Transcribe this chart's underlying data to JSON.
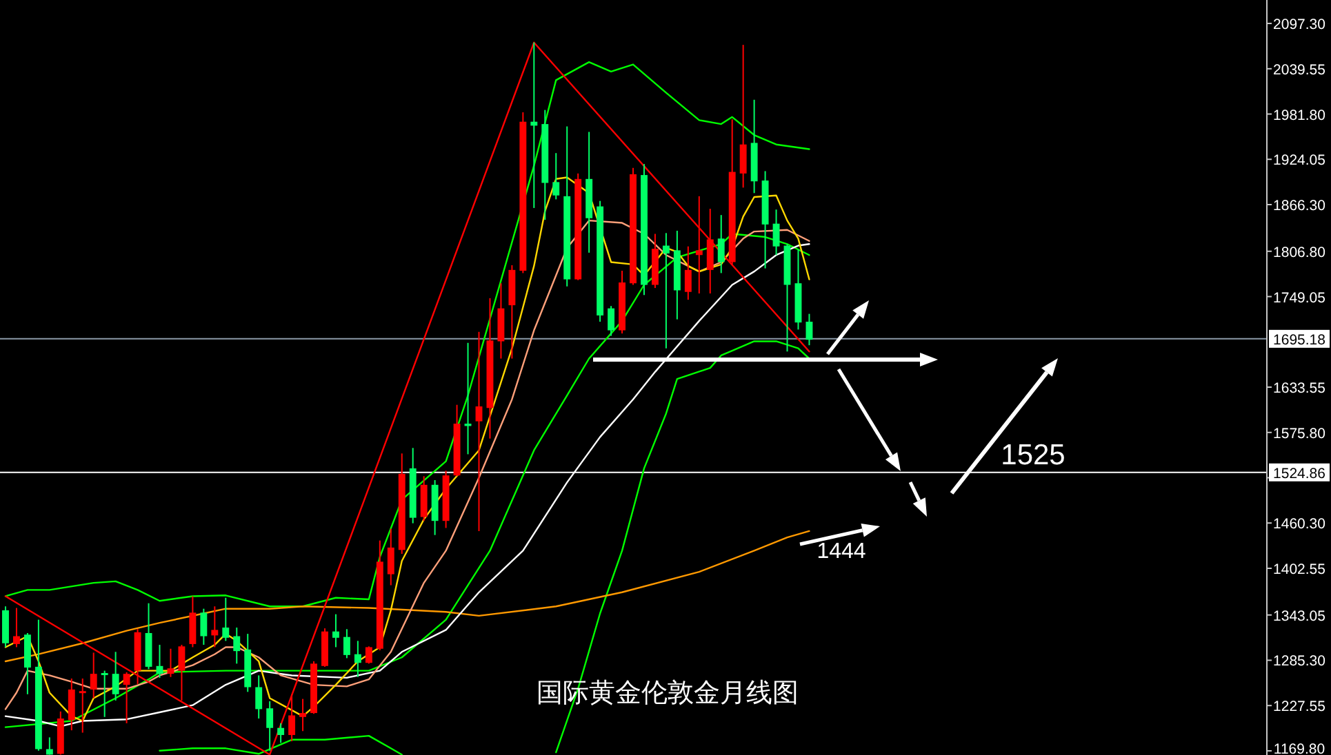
{
  "chart_data": {
    "type": "candlestick",
    "title": "国际黄金伦敦金月线图",
    "categories": [
      null,
      null,
      null,
      null,
      null,
      null,
      null,
      null,
      null,
      null,
      null,
      null,
      null,
      null,
      null,
      null,
      null,
      null,
      null,
      null,
      null,
      null,
      null,
      null,
      null,
      null,
      null,
      null,
      null,
      null,
      null,
      null,
      null,
      null,
      null,
      null,
      null,
      null,
      null,
      null,
      null,
      null,
      null,
      null,
      null,
      null,
      null,
      null,
      null,
      null,
      null,
      null,
      null,
      null,
      null,
      null,
      null,
      null,
      null,
      null,
      null,
      null,
      null,
      null,
      null,
      null,
      null,
      null,
      null,
      null,
      null,
      null,
      null,
      null,
      null,
      null,
      null,
      null,
      null,
      null,
      null,
      null,
      null,
      null,
      null,
      null,
      null,
      null,
      null,
      null,
      null,
      null,
      null,
      null,
      null,
      null,
      null,
      null,
      null,
      null,
      null,
      null,
      null,
      null,
      null,
      null,
      null,
      null,
      null,
      null,
      null,
      null,
      null,
      null,
      null
    ],
    "ohlc": [
      [
        1349,
        1354,
        1302,
        1307
      ],
      [
        1306,
        1352,
        1302,
        1316
      ],
      [
        1318,
        1320,
        1242,
        1276
      ],
      [
        1277,
        1337,
        1170,
        1172
      ],
      [
        1172,
        1187,
        1165,
        1165
      ],
      [
        1166,
        1220,
        1165,
        1211
      ],
      [
        1209,
        1262,
        1196,
        1248
      ],
      [
        1245,
        1262,
        1193,
        1246
      ],
      [
        1248,
        1295,
        1237,
        1268
      ],
      [
        1269,
        1272,
        1213,
        1267
      ],
      [
        1268,
        1296,
        1234,
        1242
      ],
      [
        1254,
        1270,
        1205,
        1268
      ],
      [
        1272,
        1325,
        1255,
        1321
      ],
      [
        1320,
        1358,
        1274,
        1277
      ],
      [
        1278,
        1305,
        1263,
        1268
      ],
      [
        1268,
        1300,
        1264,
        1275
      ],
      [
        1272,
        1305,
        1234,
        1303
      ],
      [
        1306,
        1367,
        1302,
        1346
      ],
      [
        1346,
        1351,
        1305,
        1316
      ],
      [
        1317,
        1354,
        1302,
        1324
      ],
      [
        1327,
        1365,
        1310,
        1314
      ],
      [
        1316,
        1327,
        1281,
        1297
      ],
      [
        1299,
        1319,
        1245,
        1251
      ],
      [
        1251,
        1266,
        1211,
        1223
      ],
      [
        1224,
        1233,
        1170,
        1199
      ],
      [
        1199,
        1205,
        1180,
        1190
      ],
      [
        1190,
        1242,
        1182,
        1215
      ],
      [
        1213,
        1236,
        1195,
        1218
      ],
      [
        1218,
        1284,
        1217,
        1281
      ],
      [
        1278,
        1326,
        1277,
        1322
      ],
      [
        1322,
        1344,
        1302,
        1314
      ],
      [
        1315,
        1325,
        1288,
        1292
      ],
      [
        1293,
        1310,
        1264,
        1282
      ],
      [
        1282,
        1303,
        1281,
        1302
      ],
      [
        1300,
        1438,
        1298,
        1411
      ],
      [
        1395,
        1453,
        1381,
        1429
      ],
      [
        1426,
        1549,
        1421,
        1523
      ],
      [
        1530,
        1556,
        1460,
        1467
      ],
      [
        1468,
        1520,
        1463,
        1509
      ],
      [
        1509,
        1515,
        1445,
        1463
      ],
      [
        1463,
        1527,
        1454,
        1521
      ],
      [
        1521,
        1611,
        1520,
        1587
      ],
      [
        1587,
        1690,
        1548,
        1584
      ],
      [
        1590,
        1704,
        1450,
        1609
      ],
      [
        1607,
        1747,
        1568,
        1693
      ],
      [
        1692,
        1766,
        1670,
        1734
      ],
      [
        1738,
        1789,
        1670,
        1783
      ],
      [
        1782,
        1984,
        1779,
        1972
      ],
      [
        1972,
        2073,
        1862,
        1967
      ],
      [
        1969,
        1987,
        1847,
        1894
      ],
      [
        1895,
        1932,
        1873,
        1878
      ],
      [
        1877,
        1966,
        1762,
        1771
      ],
      [
        1771,
        1906,
        1770,
        1899
      ],
      [
        1899,
        1959,
        1805,
        1849
      ],
      [
        1864,
        1871,
        1717,
        1725
      ],
      [
        1734,
        1737,
        1699,
        1706
      ],
      [
        1706,
        1782,
        1702,
        1767
      ],
      [
        1766,
        1913,
        1764,
        1905
      ],
      [
        1904,
        1918,
        1751,
        1764
      ],
      [
        1764,
        1829,
        1760,
        1810
      ],
      [
        1814,
        1830,
        1683,
        1804
      ],
      [
        1808,
        1833,
        1720,
        1757
      ],
      [
        1755,
        1813,
        1745,
        1783
      ],
      [
        1802,
        1877,
        1753,
        1808
      ],
      [
        1783,
        1861,
        1753,
        1822
      ],
      [
        1823,
        1853,
        1779,
        1793
      ],
      [
        1793,
        1975,
        1790,
        1908
      ],
      [
        1906,
        2070,
        1888,
        1943
      ],
      [
        1945,
        2000,
        1881,
        1896
      ],
      [
        1897,
        1909,
        1785,
        1841
      ],
      [
        1842,
        1860,
        1802,
        1813
      ],
      [
        1814,
        1816,
        1679,
        1764
      ],
      [
        1766,
        1809,
        1707,
        1716
      ],
      [
        1717,
        1727,
        1687,
        1694
      ],
      null,
      null,
      null,
      null,
      null,
      null,
      null,
      null,
      null,
      null,
      null,
      null,
      null,
      null,
      null,
      null,
      null,
      null,
      null,
      null,
      null,
      null,
      null,
      null,
      null,
      null,
      null,
      null,
      null,
      null,
      null,
      null,
      null,
      null,
      null,
      null,
      null,
      null,
      null,
      null,
      null
    ],
    "colors": [
      "#00ff66",
      "#ff0000",
      "#00ff66",
      "#00ff66",
      "#00ff66",
      "#ff0000",
      "#ff0000",
      "#ff0000",
      "#ff0000",
      "#00ff66",
      "#00ff66",
      "#ff0000",
      "#ff0000",
      "#00ff66",
      "#00ff66",
      "#ff0000",
      "#ff0000",
      "#ff0000",
      "#00ff66",
      "#ff0000",
      "#00ff66",
      "#00ff66",
      "#00ff66",
      "#00ff66",
      "#00ff66",
      "#00ff66",
      "#ff0000",
      "#ff0000",
      "#ff0000",
      "#ff0000",
      "#00ff66",
      "#00ff66",
      "#00ff66",
      "#ff0000",
      "#ff0000",
      "#ff0000",
      "#ff0000",
      "#00ff66",
      "#ff0000",
      "#00ff66",
      "#ff0000",
      "#ff0000",
      "#00ff66",
      "#ff0000",
      "#ff0000",
      "#ff0000",
      "#ff0000",
      "#ff0000",
      "#00ff66",
      "#00ff66",
      "#00ff66",
      "#00ff66",
      "#ff0000",
      "#00ff66",
      "#00ff66",
      "#00ff66",
      "#ff0000",
      "#ff0000",
      "#00ff66",
      "#ff0000",
      "#00ff66",
      "#00ff66",
      "#ff0000",
      "#ff0000",
      "#ff0000",
      "#00ff66",
      "#ff0000",
      "#ff0000",
      "#00ff66",
      "#00ff66",
      "#00ff66",
      "#00ff66",
      "#00ff66",
      "#00ff66",
      null,
      null,
      null,
      null,
      null,
      null,
      null,
      null,
      null,
      null,
      null,
      null,
      null,
      null,
      null,
      null,
      null,
      null,
      null,
      null,
      null,
      null,
      null,
      null,
      null,
      null,
      null,
      null,
      null,
      null,
      null,
      null,
      null,
      null,
      null,
      null,
      null,
      null,
      null,
      null,
      null
    ],
    "series": [
      {
        "type": "line",
        "color": "#00ff00",
        "values": [
          1367,
          null,
          1375,
          null,
          1375,
          null,
          null,
          null,
          1384,
          null,
          1386,
          null,
          1375,
          null,
          1361,
          null,
          null,
          1367,
          null,
          null,
          1368,
          null,
          null,
          null,
          1354,
          null,
          null,
          1354,
          null,
          null,
          1365,
          null,
          null,
          1363,
          1417,
          null,
          1490,
          null,
          null,
          null,
          1539,
          null,
          1623,
          null,
          null,
          null,
          null,
          null,
          1916,
          null,
          2025,
          null,
          null,
          2048,
          null,
          2036,
          null,
          2045,
          null,
          null,
          2009,
          null,
          null,
          1974,
          null,
          1969,
          1978,
          null,
          1955,
          null,
          1943,
          null,
          null,
          1937,
          null,
          null,
          null,
          null,
          null,
          null,
          null,
          null,
          null,
          null,
          null,
          null,
          null,
          null,
          null,
          null,
          null,
          null,
          null,
          null,
          null,
          null,
          null,
          null,
          null,
          null,
          null,
          null,
          null,
          null,
          null,
          null,
          null,
          null,
          null,
          null,
          null,
          null,
          null,
          null,
          null
        ]
      },
      {
        "type": "line",
        "color": "#00ff00",
        "values": [
          null,
          null,
          null,
          null,
          null,
          null,
          null,
          null,
          null,
          null,
          null,
          null,
          null,
          null,
          1170,
          null,
          null,
          1173,
          null,
          null,
          1173,
          null,
          null,
          1166,
          null,
          null,
          1184,
          null,
          null,
          1184,
          null,
          null,
          null,
          1189,
          null,
          1173,
          1165,
          null,
          null,
          null,
          null,
          null,
          null,
          null,
          null,
          null,
          null,
          null,
          null,
          null,
          null,
          null,
          null,
          null,
          null,
          null,
          null,
          null,
          null,
          null,
          null,
          null,
          null,
          null,
          null,
          null,
          null,
          null,
          null,
          null,
          null,
          null,
          null,
          null,
          null,
          null,
          null,
          null,
          null,
          null,
          null,
          null,
          null,
          null,
          null,
          null,
          null,
          null,
          null,
          null,
          null,
          null,
          null,
          null,
          null,
          null,
          null,
          null,
          null,
          null,
          null,
          null,
          null,
          null,
          null,
          null,
          null,
          null,
          null,
          null,
          null,
          null,
          null,
          null,
          null
        ]
      },
      {
        "type": "line",
        "color": "#00ff00",
        "values": [
          null,
          null,
          null,
          null,
          null,
          null,
          null,
          null,
          null,
          null,
          null,
          null,
          null,
          null,
          null,
          null,
          null,
          null,
          null,
          null,
          null,
          null,
          null,
          null,
          null,
          null,
          null,
          null,
          null,
          null,
          null,
          null,
          null,
          null,
          null,
          null,
          null,
          null,
          null,
          null,
          null,
          null,
          null,
          null,
          null,
          null,
          null,
          null,
          null,
          null,
          1168,
          null,
          1249,
          null,
          1345,
          null,
          1425,
          null,
          1530,
          null,
          1600,
          1644,
          null,
          null,
          1658,
          1674,
          null,
          null,
          1692,
          null,
          1692,
          null,
          1683,
          1670,
          null,
          null,
          null,
          null,
          null,
          null,
          null,
          null,
          null,
          null,
          null,
          null,
          null,
          null,
          null,
          null,
          null,
          null,
          null,
          null,
          null,
          null,
          null,
          null,
          null,
          null,
          null,
          null,
          null,
          null,
          null,
          null,
          null,
          null,
          null,
          null,
          null,
          null,
          null,
          null,
          null
        ]
      },
      {
        "type": "line",
        "color": "#00ff00",
        "values": [
          1200,
          null,
          null,
          null,
          null,
          null,
          1208,
          null,
          null,
          null,
          1237,
          null,
          null,
          1261,
          1270,
          null,
          null,
          null,
          null,
          null,
          1272,
          null,
          null,
          null,
          null,
          null,
          null,
          null,
          null,
          null,
          null,
          null,
          null,
          1272,
          null,
          null,
          1289,
          null,
          null,
          null,
          1337,
          null,
          null,
          null,
          1425,
          null,
          null,
          null,
          1553,
          null,
          null,
          1623,
          null,
          1670,
          null,
          null,
          1718,
          null,
          1764,
          null,
          null,
          1799,
          null,
          null,
          null,
          1816,
          1829,
          null,
          null,
          1825,
          null,
          1816,
          null,
          1802,
          null,
          null,
          null,
          null,
          null,
          null,
          null,
          null,
          null,
          null,
          null,
          null,
          null,
          null,
          null,
          null,
          null,
          null,
          null,
          null,
          null,
          null,
          null,
          null,
          null,
          null,
          null,
          null,
          null,
          null,
          null,
          null,
          null,
          null,
          null,
          null,
          null,
          null,
          null,
          null,
          null
        ]
      },
      {
        "type": "line",
        "color": "#ff9900",
        "values": [
          1284,
          null,
          null,
          1293,
          null,
          null,
          null,
          1307,
          null,
          null,
          null,
          1323,
          null,
          null,
          1333,
          null,
          null,
          null,
          1345,
          null,
          1351,
          null,
          null,
          null,
          1351,
          null,
          null,
          1354,
          null,
          null,
          null,
          null,
          null,
          1352,
          null,
          null,
          null,
          null,
          null,
          null,
          1347,
          null,
          null,
          1342,
          null,
          null,
          null,
          null,
          null,
          null,
          1354,
          null,
          null,
          null,
          null,
          null,
          1372,
          null,
          null,
          null,
          null,
          null,
          null,
          1398,
          null,
          null,
          null,
          null,
          1425,
          null,
          null,
          1442,
          null,
          1450,
          null,
          null,
          null,
          null,
          null,
          null,
          null,
          null,
          null,
          null,
          null,
          null,
          null,
          null,
          null,
          null,
          null,
          null,
          null,
          null,
          null,
          null,
          null,
          null,
          null,
          null,
          null,
          null,
          null,
          null,
          null,
          null,
          null,
          null,
          null,
          null,
          null,
          null,
          null,
          null,
          null
        ]
      },
      {
        "type": "line",
        "color": "#ffffff",
        "values": [
          1214,
          null,
          null,
          1208,
          null,
          1201,
          null,
          1208,
          null,
          null,
          null,
          1210,
          null,
          null,
          1219,
          null,
          null,
          1228,
          null,
          null,
          1254,
          null,
          null,
          1272,
          null,
          null,
          1266,
          null,
          null,
          null,
          null,
          1263,
          null,
          null,
          1272,
          null,
          1296,
          null,
          null,
          null,
          1324,
          null,
          null,
          1372,
          null,
          null,
          null,
          1425,
          null,
          null,
          null,
          1512,
          null,
          null,
          1570,
          null,
          null,
          1618,
          null,
          1653,
          null,
          null,
          null,
          1718,
          null,
          null,
          1764,
          null,
          1781,
          null,
          1802,
          null,
          1814,
          1816,
          null,
          null,
          null,
          null,
          null,
          null,
          null,
          null,
          null,
          null,
          null,
          null,
          null,
          null,
          null,
          null,
          null,
          null,
          null,
          null,
          null,
          null,
          null,
          null,
          null,
          null,
          null,
          null,
          null,
          null,
          null,
          null,
          null,
          null,
          null,
          null,
          null,
          null,
          null,
          null,
          null
        ]
      },
      {
        "type": "line",
        "color": "#ffa07a",
        "values": [
          1223,
          1244,
          1272,
          null,
          1266,
          null,
          1258,
          null,
          1249,
          null,
          null,
          1249,
          null,
          1258,
          1266,
          null,
          null,
          1279,
          null,
          1293,
          1302,
          1302,
          null,
          1289,
          null,
          1266,
          null,
          null,
          1254,
          null,
          null,
          1252,
          null,
          1261,
          null,
          1296,
          null,
          null,
          1384,
          null,
          1425,
          null,
          null,
          1518,
          null,
          null,
          1618,
          null,
          1706,
          null,
          1776,
          1811,
          null,
          1846,
          null,
          null,
          1843,
          null,
          1829,
          null,
          1802,
          null,
          null,
          1781,
          null,
          1793,
          null,
          1823,
          1832,
          null,
          null,
          1834,
          null,
          1820,
          null,
          null,
          null,
          null,
          null,
          null,
          null,
          null,
          null,
          null,
          null,
          null,
          null,
          null,
          null,
          null,
          null,
          null,
          null,
          null,
          null,
          null,
          null,
          null,
          null,
          null,
          null,
          null,
          null,
          null,
          null,
          null,
          null,
          null,
          null,
          null,
          null,
          null,
          null,
          null,
          null
        ]
      },
      {
        "type": "line",
        "color": "#ffd700",
        "values": [
          1302,
          null,
          1316,
          1284,
          1244,
          null,
          1214,
          1208,
          1237,
          null,
          1252,
          null,
          1272,
          null,
          null,
          1272,
          null,
          1289,
          null,
          1305,
          1319,
          1310,
          null,
          1284,
          1237,
          null,
          null,
          1214,
          1226,
          null,
          1254,
          null,
          1284,
          null,
          1302,
          1349,
          1412,
          null,
          1465,
          null,
          1504,
          null,
          null,
          1553,
          null,
          null,
          1683,
          null,
          1788,
          1858,
          1899,
          1901,
          null,
          1881,
          null,
          1793,
          null,
          1790,
          1776,
          null,
          1811,
          1806,
          1788,
          1781,
          null,
          1790,
          1811,
          1851,
          1876,
          null,
          1878,
          1846,
          1823,
          1771,
          null,
          null,
          null,
          null,
          null,
          null,
          null,
          null,
          null,
          null,
          null,
          null,
          null,
          null,
          null,
          null,
          null,
          null,
          null,
          null,
          null,
          null,
          null,
          null,
          null,
          null,
          null,
          null,
          null,
          null,
          null,
          null,
          null,
          null,
          null,
          null,
          null,
          null,
          null,
          null,
          null
        ]
      },
      {
        "type": "line",
        "color": "#ff0000",
        "values": [
          1367,
          null,
          null,
          null,
          null,
          null,
          null,
          null,
          null,
          null,
          null,
          null,
          null,
          null,
          null,
          null,
          null,
          null,
          null,
          null,
          null,
          null,
          null,
          null,
          1165,
          null,
          null,
          null,
          null,
          null,
          null,
          null,
          null,
          null,
          null,
          null,
          null,
          null,
          null,
          null,
          null,
          null,
          null,
          null,
          null,
          null,
          null,
          null,
          2073,
          null,
          null,
          null,
          null,
          null,
          null,
          null,
          null,
          null,
          null,
          null,
          null,
          null,
          null,
          null,
          null,
          null,
          null,
          null,
          null,
          null,
          null,
          null,
          null,
          1679,
          null,
          null,
          null,
          null,
          null,
          null,
          null,
          null,
          null,
          null,
          null,
          null,
          null,
          null,
          null,
          null,
          null,
          null,
          null,
          null,
          null,
          null,
          null,
          null,
          null,
          null,
          null,
          null,
          null,
          null,
          null,
          null,
          null,
          null,
          null,
          null,
          null,
          null,
          null,
          null,
          null
        ]
      }
    ],
    "ylim": [
      1164.5,
      2127.2
    ],
    "yticks": [
      {
        "value": 2097.3,
        "label": "2097.30"
      },
      {
        "value": 2039.55,
        "label": "2039.55"
      },
      {
        "value": 1981.8,
        "label": "1981.80"
      },
      {
        "value": 1924.05,
        "label": "1924.05"
      },
      {
        "value": 1866.3,
        "label": "1866.30"
      },
      {
        "value": 1806.8,
        "label": "1806.80"
      },
      {
        "value": 1749.05,
        "label": "1749.05"
      },
      {
        "value": 1633.55,
        "label": "1633.55"
      },
      {
        "value": 1575.8,
        "label": "1575.80"
      },
      {
        "value": 1518.05,
        "label": null
      },
      {
        "value": 1460.3,
        "label": "1460.30"
      },
      {
        "value": 1402.55,
        "label": "1402.55"
      },
      {
        "value": 1343.05,
        "label": "1343.05"
      },
      {
        "value": 1285.3,
        "label": "1285.30"
      },
      {
        "value": 1227.55,
        "label": "1227.55"
      },
      {
        "value": 1169.8,
        "label": "1169.80"
      }
    ],
    "tick_labels": "y",
    "ref_lines": [
      {
        "axis": "y",
        "value": 1695.18,
        "label": "1695.18",
        "color": "#8c9aa8"
      },
      {
        "axis": "y",
        "value": 1524.86,
        "label": "1524.86",
        "color": "#ffffff"
      }
    ],
    "annotations": [
      "1525",
      "1444"
    ]
  }
}
